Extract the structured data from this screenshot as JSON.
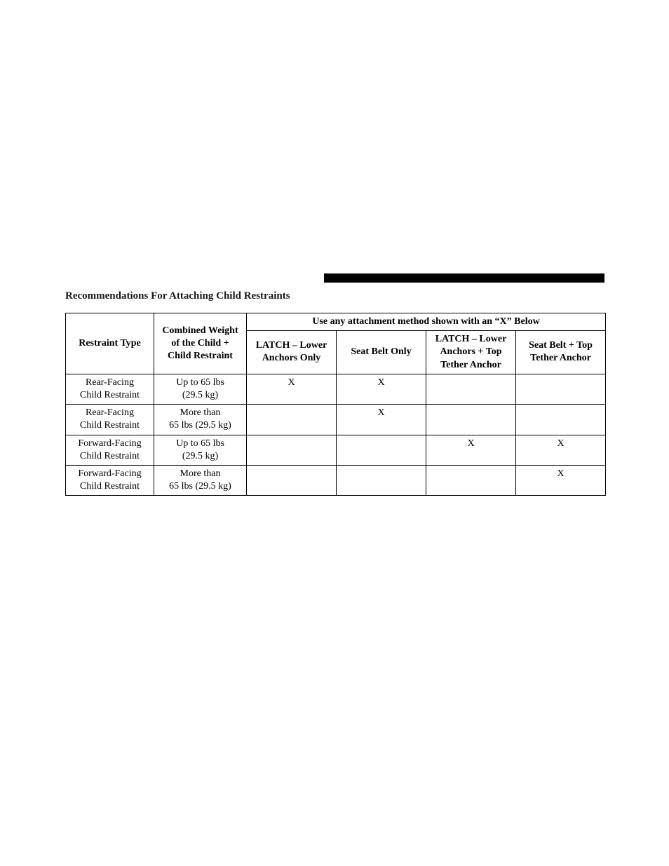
{
  "heading": "Recommendations For Attaching Child Restraints",
  "table": {
    "header": {
      "restraint_type": "Restraint Type",
      "combined_weight": "Combined Weight of the Child + Child Restraint",
      "span_header": "Use any attachment method shown with an “X” Below",
      "latch_lower": "LATCH – Lower Anchors Only",
      "seat_belt_only": "Seat Belt Only",
      "latch_top": "LATCH – Lower Anchors + Top Tether Anchor",
      "seat_belt_top": "Seat Belt + Top Tether Anchor"
    },
    "rows": [
      {
        "type_l1": "Rear-Facing",
        "type_l2": "Child Restraint",
        "weight_l1": "Up to 65 lbs",
        "weight_l2": "(29.5 kg)",
        "c1": "X",
        "c2": "X",
        "c3": "",
        "c4": ""
      },
      {
        "type_l1": "Rear-Facing",
        "type_l2": "Child Restraint",
        "weight_l1": "More than",
        "weight_l2": "65 lbs (29.5 kg)",
        "c1": "",
        "c2": "X",
        "c3": "",
        "c4": ""
      },
      {
        "type_l1": "Forward-Facing",
        "type_l2": "Child Restraint",
        "weight_l1": "Up to 65 lbs",
        "weight_l2": "(29.5 kg)",
        "c1": "",
        "c2": "",
        "c3": "X",
        "c4": "X"
      },
      {
        "type_l1": "Forward-Facing",
        "type_l2": "Child Restraint",
        "weight_l1": "More than",
        "weight_l2": "65 lbs (29.5 kg)",
        "c1": "",
        "c2": "",
        "c3": "",
        "c4": "X"
      }
    ]
  }
}
